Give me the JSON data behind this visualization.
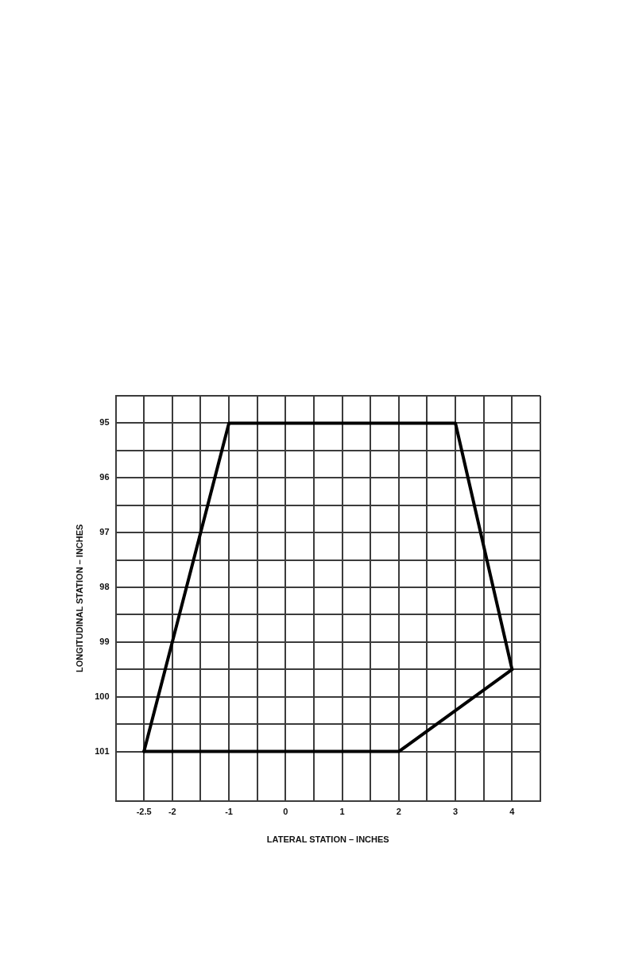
{
  "chart_data": {
    "type": "line",
    "xlabel": "LATERAL STATION – INCHES",
    "ylabel": "LONGITUDINAL STATION – INCHES",
    "series": [
      {
        "color": "#000000",
        "x": [
          -2.5,
          -1,
          3,
          4
        ],
        "values": [
          101,
          95,
          95,
          99.5
        ]
      },
      {
        "color": "#000000",
        "x": [
          -2.5,
          2,
          4
        ],
        "values": [
          101,
          101,
          99.5
        ]
      }
    ],
    "xlim": [
      -3,
      4.5
    ],
    "xticks": [
      {
        "value": -3,
        "label": null
      },
      -2.5,
      -2,
      {
        "value": -1.5,
        "label": null
      },
      -1,
      {
        "value": -0.5,
        "label": null
      },
      0,
      {
        "value": 0.5,
        "label": null
      },
      1,
      {
        "value": 1.5,
        "label": null
      },
      2,
      {
        "value": 2.5,
        "label": null
      },
      3,
      {
        "value": 3.5,
        "label": null
      },
      4,
      {
        "value": 4.5,
        "label": null
      }
    ],
    "ylim": [
      101.9,
      94.5
    ],
    "yticks": [
      {
        "value": 94.5,
        "label": null
      },
      95,
      {
        "value": 95.5,
        "label": null
      },
      96,
      {
        "value": 96.5,
        "label": null
      },
      97,
      {
        "value": 97.5,
        "label": null
      },
      98,
      {
        "value": 98.5,
        "label": null
      },
      99,
      {
        "value": 99.5,
        "label": null
      },
      100,
      {
        "value": 100.5,
        "label": null
      },
      101
    ],
    "grid": true,
    "marker": "none",
    "line_style": "solid",
    "legend": false
  }
}
